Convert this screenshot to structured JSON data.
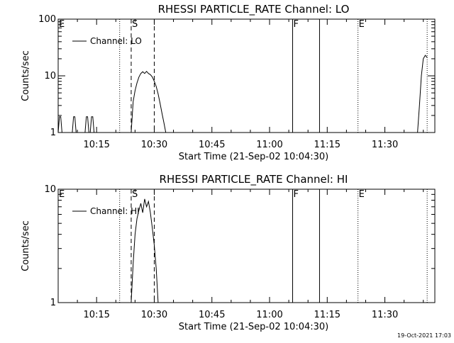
{
  "timestamp": "19-Oct-2021 17:03",
  "chart_data": [
    {
      "type": "line",
      "title": "RHESSI PARTICLE_RATE Channel: LO",
      "xlabel": "Start Time (21-Sep-02 10:04:30)",
      "ylabel": "Counts/sec",
      "yscale": "log",
      "ylim": [
        1,
        100
      ],
      "yticks": [
        {
          "v": 1,
          "label": "1"
        },
        {
          "v": 10,
          "label": "10"
        },
        {
          "v": 100,
          "label": "100"
        }
      ],
      "xlim": [
        "10:05",
        "11:43"
      ],
      "xticks": [
        "10:15",
        "10:30",
        "10:45",
        "11:00",
        "11:15",
        "11:30"
      ],
      "legend": {
        "label": "Channel: LO",
        "placement": "top-left"
      },
      "markers": [
        {
          "time": "10:05",
          "label": "E",
          "style": "none"
        },
        {
          "time": "10:21",
          "label": "",
          "style": "dotted"
        },
        {
          "time": "10:24",
          "label": "S",
          "style": "dashed"
        },
        {
          "time": "10:30",
          "label": "",
          "style": "dashed"
        },
        {
          "time": "11:06",
          "label": "F",
          "style": "solid"
        },
        {
          "time": "11:13",
          "label": "",
          "style": "solid"
        },
        {
          "time": "11:23",
          "label": "E",
          "style": "dotted"
        },
        {
          "time": "11:41",
          "label": "",
          "style": "dotted"
        }
      ],
      "series": [
        {
          "name": "Channel: LO",
          "segments": [
            {
              "x": [
                "10:05:00",
                "10:05:20",
                "10:05:40",
                "10:06:00"
              ],
              "y": [
                1,
                1.9,
                1.9,
                1
              ]
            },
            {
              "x": [
                "10:08:40",
                "10:09:00",
                "10:09:20",
                "10:09:40"
              ],
              "y": [
                1,
                1.9,
                1.9,
                1
              ]
            },
            {
              "x": [
                "10:12:00",
                "10:12:20",
                "10:12:40",
                "10:13:00"
              ],
              "y": [
                1,
                1.9,
                1.9,
                1
              ]
            },
            {
              "x": [
                "10:13:20",
                "10:13:40",
                "10:14:00",
                "10:14:20"
              ],
              "y": [
                1,
                1.9,
                1.9,
                1
              ]
            },
            {
              "x": [
                "10:24:00",
                "10:24:30",
                "10:25:00",
                "10:25:30",
                "10:26:00",
                "10:26:30",
                "10:27:00",
                "10:27:30",
                "10:28:00",
                "10:28:30",
                "10:29:00",
                "10:29:30",
                "10:30:00",
                "10:30:30",
                "10:31:00",
                "10:31:30",
                "10:32:00",
                "10:32:30",
                "10:33:00"
              ],
              "y": [
                1,
                3.5,
                5.5,
                7.5,
                9.5,
                11,
                11.8,
                11,
                12,
                11,
                10.5,
                9.5,
                8,
                6.5,
                4.8,
                3.3,
                2.2,
                1.5,
                1
              ]
            },
            {
              "x": [
                "11:38:30",
                "11:39:00",
                "11:39:30",
                "11:40:00",
                "11:40:30",
                "11:41:00"
              ],
              "y": [
                1,
                3,
                10,
                20,
                23,
                21
              ]
            }
          ]
        }
      ]
    },
    {
      "type": "line",
      "title": "RHESSI PARTICLE_RATE Channel: HI",
      "xlabel": "Start Time (21-Sep-02 10:04:30)",
      "ylabel": "Counts/sec",
      "yscale": "log",
      "ylim": [
        1,
        10
      ],
      "yticks": [
        {
          "v": 1,
          "label": "1"
        },
        {
          "v": 10,
          "label": "10"
        }
      ],
      "xlim": [
        "10:05",
        "11:43"
      ],
      "xticks": [
        "10:15",
        "10:30",
        "10:45",
        "11:00",
        "11:15",
        "11:30"
      ],
      "legend": {
        "label": "Channel: HI",
        "placement": "top-left"
      },
      "markers": [
        {
          "time": "10:05",
          "label": "E",
          "style": "none"
        },
        {
          "time": "10:21",
          "label": "",
          "style": "dotted"
        },
        {
          "time": "10:24",
          "label": "S",
          "style": "dashed"
        },
        {
          "time": "10:30",
          "label": "",
          "style": "dashed"
        },
        {
          "time": "11:06",
          "label": "F",
          "style": "solid"
        },
        {
          "time": "11:13",
          "label": "",
          "style": "solid"
        },
        {
          "time": "11:23",
          "label": "E",
          "style": "dotted"
        },
        {
          "time": "11:41",
          "label": "",
          "style": "dotted"
        }
      ],
      "series": [
        {
          "name": "Channel: HI",
          "segments": [
            {
              "x": [
                "10:24:00",
                "10:24:30",
                "10:25:00",
                "10:25:30",
                "10:26:00",
                "10:26:30",
                "10:27:00",
                "10:27:30",
                "10:28:00",
                "10:28:30",
                "10:29:00",
                "10:29:30",
                "10:30:00",
                "10:30:30",
                "10:31:00"
              ],
              "y": [
                1,
                2.2,
                4,
                5.5,
                6.5,
                7.5,
                6.2,
                8.2,
                7,
                7.8,
                6.2,
                4.5,
                3.2,
                2,
                1
              ]
            }
          ]
        }
      ]
    }
  ]
}
